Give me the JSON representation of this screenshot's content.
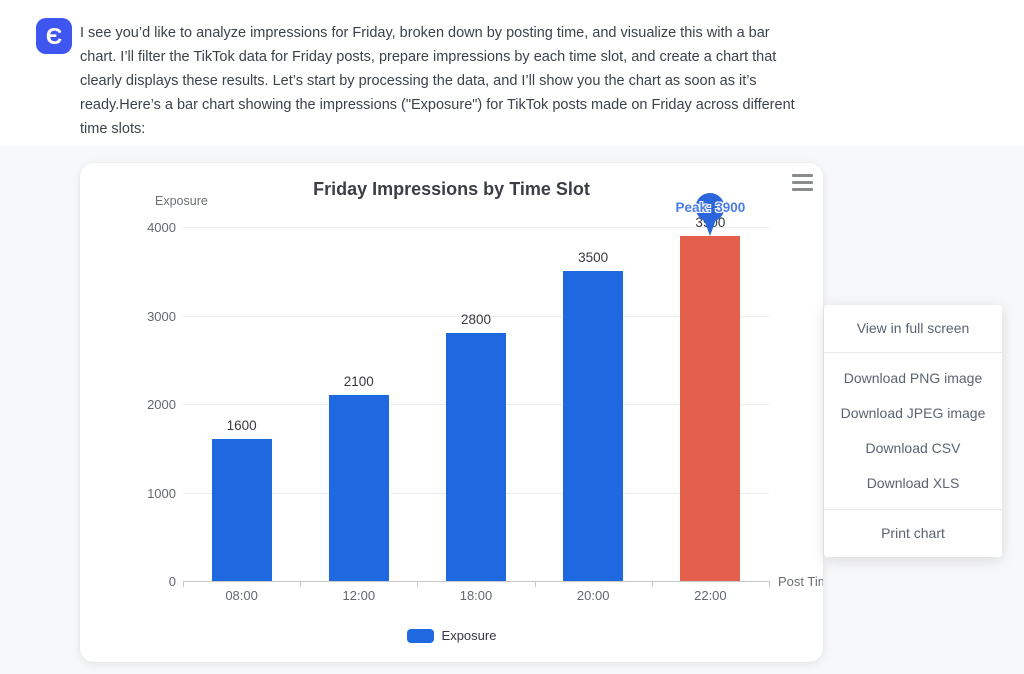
{
  "message": {
    "avatar_glyph": "Є",
    "text_lines": [
      "I see you’d like to analyze impressions for Friday, broken down by posting time, and visualize this with a bar",
      "chart. I’ll filter the TikTok data for Friday posts, prepare impressions by each time slot, and create a chart that",
      "clearly displays these results. Let’s start by processing the data, and I’ll show you the chart as soon as it’s",
      "ready.Here’s a bar chart showing the impressions (\"Exposure\") for TikTok posts made on Friday across different",
      "time slots:"
    ]
  },
  "chart_data": {
    "type": "bar",
    "title": "Friday Impressions by Time Slot",
    "categories": [
      "08:00",
      "12:00",
      "18:00",
      "20:00",
      "22:00"
    ],
    "series": [
      {
        "name": "Exposure",
        "values": [
          1600,
          2100,
          2800,
          3500,
          3900
        ]
      }
    ],
    "data_labels": [
      "1600",
      "2100",
      "2800",
      "3500",
      "3900"
    ],
    "xlabel": "Post Time",
    "ylabel": "Exposure",
    "ylim": [
      0,
      4000
    ],
    "yticks": [
      0,
      1000,
      2000,
      3000,
      4000
    ],
    "grid": true,
    "legend_position": "bottom",
    "bar_colors": {
      "default": "#1f69e0",
      "highlight": "#e2604c",
      "highlight_category": "22:00"
    },
    "annotation": {
      "label": "Peak: 3900",
      "category": "22:00",
      "value": 3900
    }
  },
  "chart_menu": {
    "items": [
      "View in full screen",
      "Download PNG image",
      "Download JPEG image",
      "Download CSV",
      "Download XLS",
      "Print chart"
    ]
  },
  "colors": {
    "accent_blue": "#1f69e0",
    "highlight_red": "#e2604c",
    "avatar_blue": "#3e55f0",
    "annotation_blue": "#2b66dc",
    "peak_text_blue": "#4a7de9"
  }
}
